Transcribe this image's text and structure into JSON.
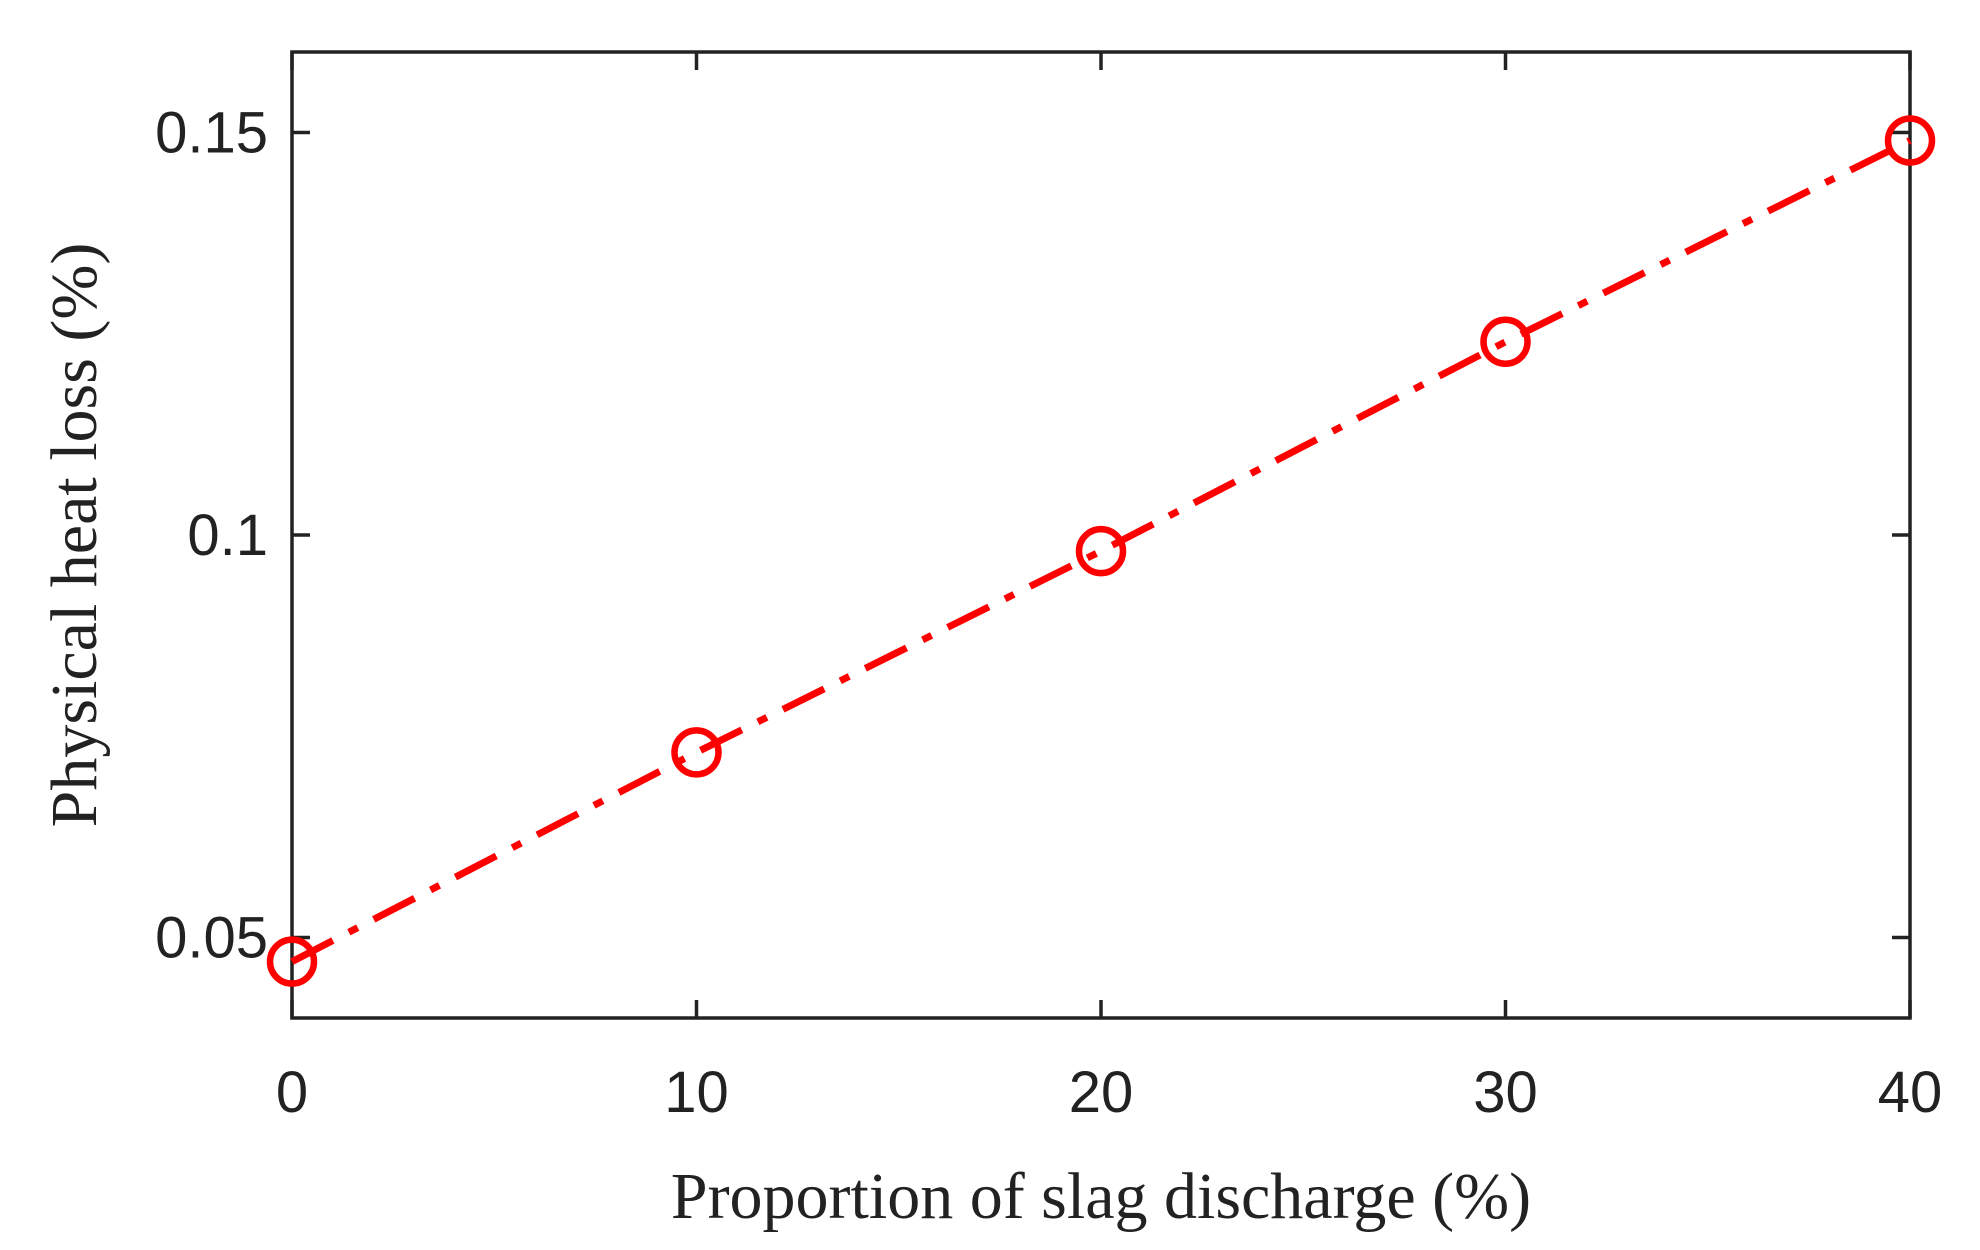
{
  "chart_data": {
    "type": "line",
    "title": "",
    "xlabel": "Proportion of slag discharge (%)",
    "ylabel": "Physical heat loss (%)",
    "x": [
      0,
      10,
      20,
      30,
      40
    ],
    "series": [
      {
        "values": [
          0.047,
          0.073,
          0.098,
          0.124,
          0.149
        ],
        "color": "#ff0000",
        "line_style": "dash-dot",
        "marker": "open-circle"
      }
    ],
    "xlim": [
      0,
      40
    ],
    "ylim": [
      0.04,
      0.16
    ],
    "x_ticks": [
      0,
      10,
      20,
      30,
      40
    ],
    "x_tick_labels": [
      "0",
      "10",
      "20",
      "30",
      "40"
    ],
    "y_ticks": [
      0.05,
      0.1,
      0.15
    ],
    "y_tick_labels": [
      "0.05",
      "0.1",
      "0.15"
    ],
    "grid": false,
    "legend": false,
    "axis_color": "#222222"
  }
}
